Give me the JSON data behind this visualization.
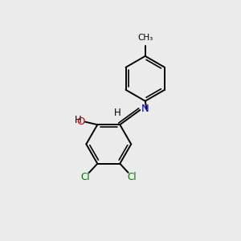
{
  "background_color": "#ebebeb",
  "bond_color": "#000000",
  "atom_colors": {
    "N": "#0000cc",
    "O": "#cc0000",
    "Cl": "#007700",
    "H": "#000000",
    "C": "#000000"
  },
  "figsize": [
    3.0,
    3.0
  ],
  "dpi": 100
}
